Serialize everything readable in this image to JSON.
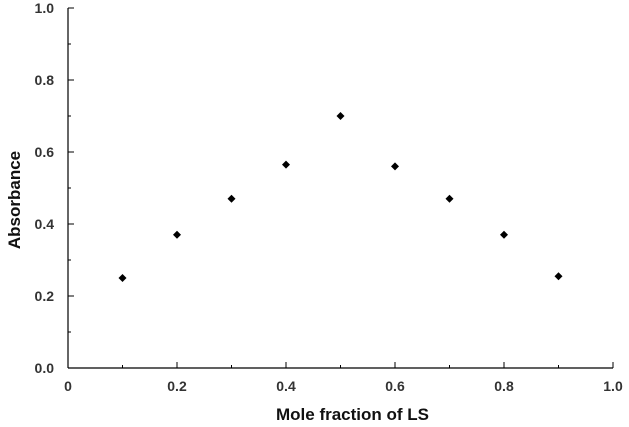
{
  "chart_data": {
    "type": "scatter",
    "title": "",
    "xlabel": "Mole fraction of LS",
    "ylabel": "Absorbance",
    "xlim": [
      0,
      1.0
    ],
    "ylim": [
      0,
      1.0
    ],
    "x_ticks": [
      "0",
      "0.2",
      "0.4",
      "0.6",
      "0.8",
      "1.0"
    ],
    "y_ticks": [
      "0.0",
      "0.2",
      "0.4",
      "0.6",
      "0.8",
      "1.0"
    ],
    "grid": false,
    "legend": "none",
    "marker": "diamond",
    "marker_color": "#000000",
    "series": [
      {
        "x": [
          0.1,
          0.2,
          0.3,
          0.4,
          0.5,
          0.6,
          0.7,
          0.8,
          0.9
        ],
        "y": [
          0.25,
          0.37,
          0.47,
          0.565,
          0.7,
          0.56,
          0.47,
          0.37,
          0.255
        ]
      }
    ]
  }
}
